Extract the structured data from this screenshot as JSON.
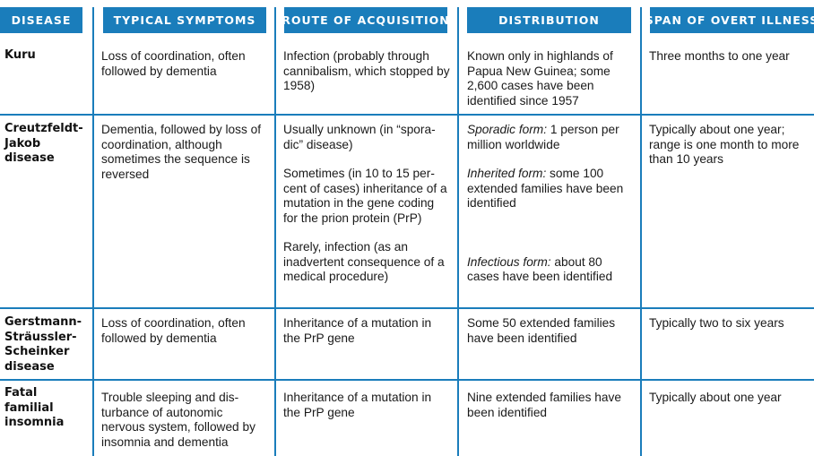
{
  "headers": {
    "disease": "DISEASE",
    "symptoms": "TYPICAL SYMPTOMS",
    "route": "ROUTE OF ACQUISITION",
    "distribution": "DISTRIBUTION",
    "span": "SPAN OF OVERT ILLNESS"
  },
  "rows": [
    {
      "disease": "Kuru",
      "symptoms": "Loss of coordination, often followed by dementia",
      "route": [
        "Infection (probably through cannibalism, which stopped by 1958)"
      ],
      "distribution": [
        {
          "label": "",
          "text": "Known only in highlands of Papua New Guinea; some 2,600 cases have been identified since 1957"
        }
      ],
      "span": "Three months to one year"
    },
    {
      "disease": "Creutzfeldt-Jakob disease",
      "symptoms": "Dementia, followed by loss of coordination, although sometimes the sequence is reversed",
      "route": [
        "Usually unknown (in “spora-dic” disease)",
        "Sometimes (in 10 to 15 per-cent of cases) inheritance of a mutation in the gene coding for the prion protein (PrP)",
        "Rarely, infection (as an inadvertent consequence of a medical procedure)"
      ],
      "distribution": [
        {
          "label": "Sporadic form:",
          "text": " 1 person per million worldwide"
        },
        {
          "label": "Inherited form:",
          "text": " some 100 extended families have been identified"
        },
        {
          "label": "Infectious form:",
          "text": " about 80 cases have been identified"
        }
      ],
      "span": "Typically about one year; range is one month to more than 10 years"
    },
    {
      "disease": "Gerstmann-Sträussler-Scheinker disease",
      "symptoms": "Loss of coordination, often followed by dementia",
      "route": [
        "Inheritance of a mutation in the PrP gene"
      ],
      "distribution": [
        {
          "label": "",
          "text": "Some 50 extended families have been identified"
        }
      ],
      "span": "Typically two to six years"
    },
    {
      "disease": "Fatal familial insomnia",
      "symptoms": "Trouble sleeping and dis-turbance of autonomic nervous system, followed by insomnia and dementia",
      "route": [
        "Inheritance of a mutation in the PrP gene"
      ],
      "distribution": [
        {
          "label": "",
          "text": "Nine extended families have been identified"
        }
      ],
      "span": "Typically about one year"
    }
  ]
}
